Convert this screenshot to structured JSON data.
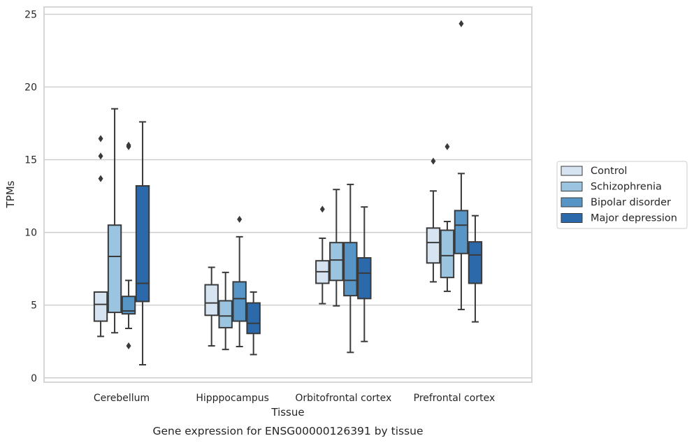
{
  "chart_data": {
    "type": "box",
    "xlabel": "Tissue",
    "ylabel": "TPMs",
    "caption": "Gene expression for ENSG00000126391 by tissue",
    "ylim": [
      -0.3,
      25.5
    ],
    "yticks": [
      "0",
      "5",
      "10",
      "15",
      "20",
      "25"
    ],
    "ytick_values": [
      0,
      5,
      10,
      15,
      20,
      25
    ],
    "grid": "horizontal",
    "legend_position": "right",
    "categories": [
      "Cerebellum",
      "Hipppocampus",
      "Orbitofrontal cortex",
      "Prefrontal cortex"
    ],
    "series": [
      {
        "name": "Control",
        "color": "#d6e4f2",
        "boxes": [
          {
            "min": 2.85,
            "q1": 3.9,
            "median": 5.05,
            "q3": 5.9,
            "max": 5.9,
            "outliers": [
              13.7,
              15.25,
              16.45
            ]
          },
          {
            "min": 2.2,
            "q1": 4.3,
            "median": 5.15,
            "q3": 6.4,
            "max": 7.6,
            "outliers": []
          },
          {
            "min": 5.1,
            "q1": 6.5,
            "median": 7.3,
            "q3": 8.05,
            "max": 9.6,
            "outliers": [
              11.6
            ]
          },
          {
            "min": 6.6,
            "q1": 7.9,
            "median": 9.3,
            "q3": 10.3,
            "max": 12.85,
            "outliers": [
              14.9
            ]
          }
        ]
      },
      {
        "name": "Schizophrenia",
        "color": "#9ac4e0",
        "boxes": [
          {
            "min": 3.1,
            "q1": 4.5,
            "median": 8.35,
            "q3": 10.5,
            "max": 18.5,
            "outliers": []
          },
          {
            "min": 1.95,
            "q1": 3.45,
            "median": 4.25,
            "q3": 5.3,
            "max": 7.25,
            "outliers": []
          },
          {
            "min": 4.95,
            "q1": 6.7,
            "median": 8.1,
            "q3": 9.3,
            "max": 12.95,
            "outliers": []
          },
          {
            "min": 5.95,
            "q1": 6.9,
            "median": 8.4,
            "q3": 10.15,
            "max": 10.75,
            "outliers": [
              15.9
            ]
          }
        ]
      },
      {
        "name": "Bipolar disorder",
        "color": "#5695c5",
        "boxes": [
          {
            "min": 3.4,
            "q1": 4.4,
            "median": 4.6,
            "q3": 5.6,
            "max": 6.7,
            "outliers": [
              2.2,
              15.9,
              16.0
            ]
          },
          {
            "min": 2.15,
            "q1": 3.9,
            "median": 5.45,
            "q3": 6.6,
            "max": 9.7,
            "outliers": [
              10.9
            ]
          },
          {
            "min": 1.75,
            "q1": 5.65,
            "median": 6.7,
            "q3": 9.3,
            "max": 13.3,
            "outliers": []
          },
          {
            "min": 4.7,
            "q1": 8.55,
            "median": 10.5,
            "q3": 11.5,
            "max": 14.05,
            "outliers": [
              24.35
            ]
          }
        ]
      },
      {
        "name": "Major depression",
        "color": "#2b69aa",
        "boxes": [
          {
            "min": 0.9,
            "q1": 5.25,
            "median": 6.5,
            "q3": 13.2,
            "max": 17.6,
            "outliers": []
          },
          {
            "min": 1.6,
            "q1": 3.05,
            "median": 3.75,
            "q3": 5.15,
            "max": 5.9,
            "outliers": []
          },
          {
            "min": 2.5,
            "q1": 5.45,
            "median": 7.2,
            "q3": 8.25,
            "max": 11.75,
            "outliers": []
          },
          {
            "min": 3.85,
            "q1": 6.5,
            "median": 8.45,
            "q3": 9.35,
            "max": 11.15,
            "outliers": []
          }
        ]
      }
    ]
  }
}
